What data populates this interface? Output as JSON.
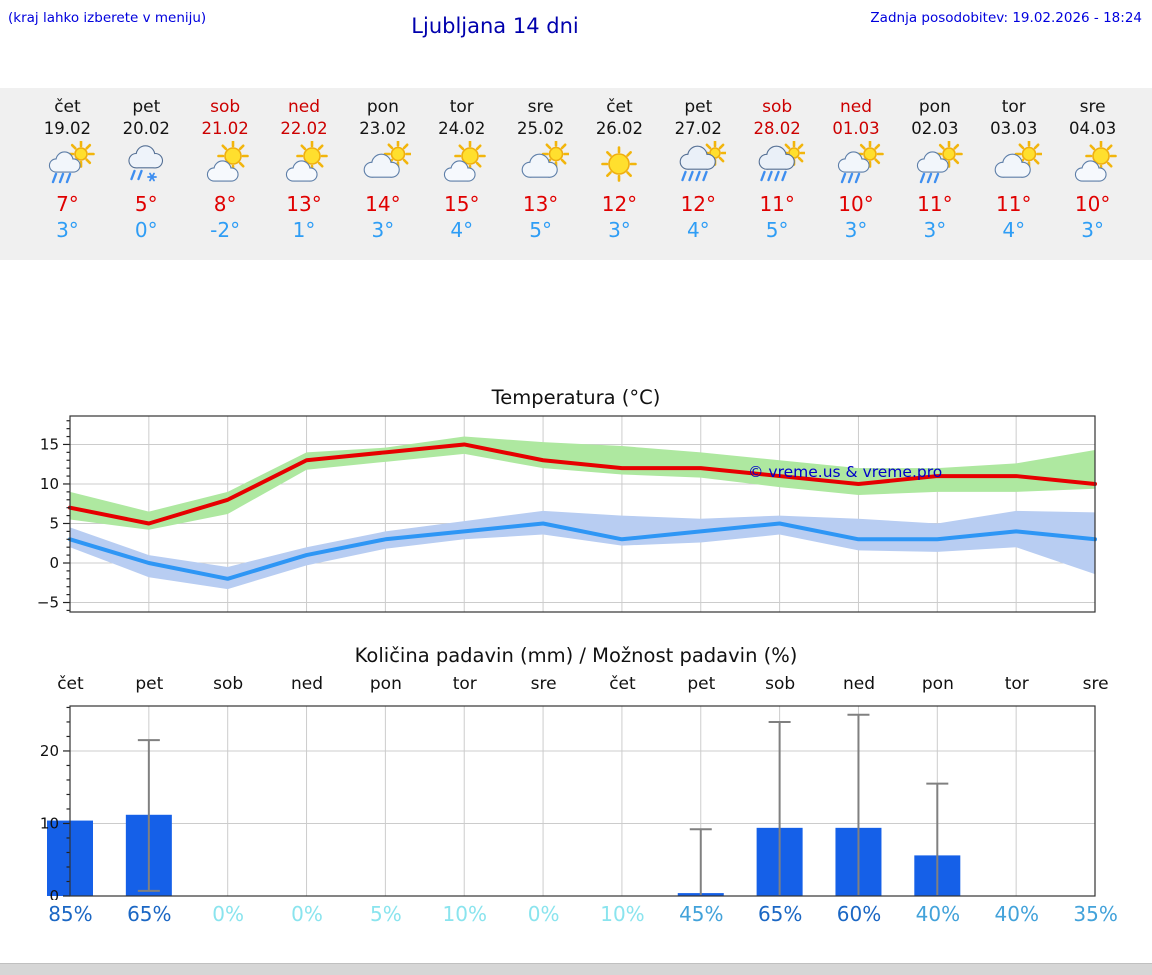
{
  "header": {
    "hint": "(kraj lahko izberete v meniju)",
    "title": "Ljubljana 14 dni",
    "last_update": "Zadnja posodobitev: 19.02.2026 - 18:24"
  },
  "days": [
    {
      "name": "čet",
      "date": "19.02",
      "weekend": false,
      "icon": "rain-sun",
      "tmax": "7°",
      "tmin": "3°"
    },
    {
      "name": "pet",
      "date": "20.02",
      "weekend": false,
      "icon": "sleet",
      "tmax": "5°",
      "tmin": "0°"
    },
    {
      "name": "sob",
      "date": "21.02",
      "weekend": true,
      "icon": "partly",
      "tmax": "8°",
      "tmin": "-2°"
    },
    {
      "name": "ned",
      "date": "22.02",
      "weekend": true,
      "icon": "partly",
      "tmax": "13°",
      "tmin": "1°"
    },
    {
      "name": "pon",
      "date": "23.02",
      "weekend": false,
      "icon": "cloudy",
      "tmax": "14°",
      "tmin": "3°"
    },
    {
      "name": "tor",
      "date": "24.02",
      "weekend": false,
      "icon": "partly",
      "tmax": "15°",
      "tmin": "4°"
    },
    {
      "name": "sre",
      "date": "25.02",
      "weekend": false,
      "icon": "cloudy",
      "tmax": "13°",
      "tmin": "5°"
    },
    {
      "name": "čet",
      "date": "26.02",
      "weekend": false,
      "icon": "sunny",
      "tmax": "12°",
      "tmin": "3°"
    },
    {
      "name": "pet",
      "date": "27.02",
      "weekend": false,
      "icon": "rain",
      "tmax": "12°",
      "tmin": "4°"
    },
    {
      "name": "sob",
      "date": "28.02",
      "weekend": true,
      "icon": "rain",
      "tmax": "11°",
      "tmin": "5°"
    },
    {
      "name": "ned",
      "date": "01.03",
      "weekend": true,
      "icon": "rain-sun",
      "tmax": "10°",
      "tmin": "3°"
    },
    {
      "name": "pon",
      "date": "02.03",
      "weekend": false,
      "icon": "rain-sun",
      "tmax": "11°",
      "tmin": "3°"
    },
    {
      "name": "tor",
      "date": "03.03",
      "weekend": false,
      "icon": "cloudy",
      "tmax": "11°",
      "tmin": "4°"
    },
    {
      "name": "sre",
      "date": "04.03",
      "weekend": false,
      "icon": "partly",
      "tmax": "10°",
      "tmin": "3°"
    }
  ],
  "chart_data": [
    {
      "type": "line",
      "title": "Temperatura (°C)",
      "categories": [
        "čet",
        "pet",
        "sob",
        "ned",
        "pon",
        "tor",
        "sre",
        "čet",
        "pet",
        "sob",
        "ned",
        "pon",
        "tor",
        "sre"
      ],
      "ylim": [
        -6.2,
        18.6
      ],
      "yticks": [
        -5,
        0,
        5,
        10,
        15
      ],
      "grid": true,
      "watermark": "© vreme.us & vreme.pro",
      "series": [
        {
          "name": "Max temperatura",
          "color": "#e60000",
          "values": [
            7,
            5,
            8,
            13,
            14,
            15,
            13,
            12,
            12,
            11,
            10,
            11,
            11,
            10
          ],
          "band": {
            "color": "#aee8a0",
            "upper": [
              9,
              6.5,
              9,
              14,
              14.6,
              16,
              15.3,
              14.8,
              14,
              13,
              12,
              12,
              12.6,
              14.3
            ],
            "lower": [
              5.5,
              4.2,
              6.2,
              11.8,
              12.8,
              13.8,
              12,
              11.2,
              10.8,
              9.6,
              8.6,
              9,
              9,
              9.4
            ]
          }
        },
        {
          "name": "Min temperatura",
          "color": "#2e96f5",
          "values": [
            3,
            0,
            -2,
            1,
            3,
            4,
            5,
            3,
            4,
            5,
            3,
            3,
            4,
            3
          ],
          "band": {
            "color": "#b8cdf2",
            "upper": [
              4.5,
              1,
              -0.5,
              2,
              4,
              5.3,
              6.6,
              6,
              5.6,
              6,
              5.6,
              5,
              6.6,
              6.4
            ],
            "lower": [
              2,
              -1.8,
              -3.3,
              -0.3,
              1.8,
              3,
              3.6,
              2.2,
              2.6,
              3.6,
              1.6,
              1.4,
              2,
              -1.4
            ]
          }
        }
      ]
    },
    {
      "type": "bar",
      "title": "Količina padavin (mm) / Možnost padavin (%)",
      "categories": [
        "čet",
        "pet",
        "sob",
        "ned",
        "pon",
        "tor",
        "sre",
        "čet",
        "pet",
        "sob",
        "ned",
        "pon",
        "tor",
        "sre"
      ],
      "ylim": [
        0,
        26.2
      ],
      "yticks": [
        0,
        10,
        20
      ],
      "bar_color": "#1560e8",
      "values": [
        10.4,
        11.2,
        0,
        0,
        0,
        0,
        0,
        0,
        0.4,
        9.4,
        9.4,
        5.6,
        0,
        0
      ],
      "whisker_high": [
        null,
        21.5,
        null,
        null,
        null,
        null,
        null,
        null,
        9.2,
        24,
        25,
        15.5,
        null,
        null
      ],
      "whisker_low": [
        null,
        0.7,
        null,
        null,
        null,
        null,
        null,
        null,
        null,
        null,
        null,
        null,
        null,
        null
      ],
      "whisker_color": "#808080",
      "probabilities": [
        "85%",
        "65%",
        "0%",
        "0%",
        "5%",
        "10%",
        "0%",
        "10%",
        "45%",
        "65%",
        "60%",
        "40%",
        "40%",
        "35%"
      ],
      "prob_levels": [
        "high",
        "high",
        "low",
        "low",
        "low",
        "low",
        "low",
        "low",
        "mid",
        "high",
        "high",
        "mid",
        "mid",
        "mid"
      ],
      "prob_colors": {
        "high": "#1b67c4",
        "mid": "#42a2da",
        "low": "#8ae4ee"
      }
    }
  ]
}
